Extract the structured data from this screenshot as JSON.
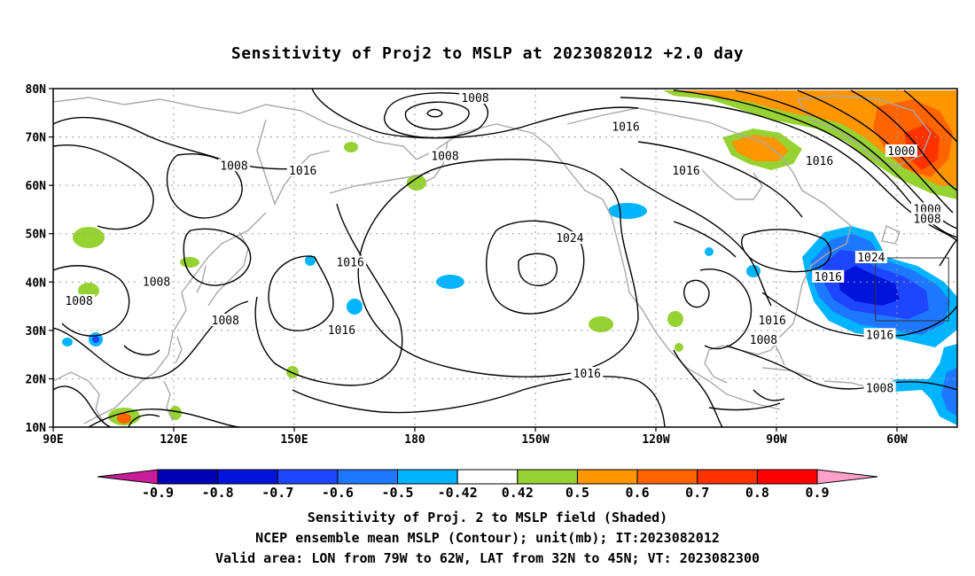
{
  "title": "Sensitivity of Proj2 to MSLP at 2023082012 +2.0 day",
  "lat_labels": [
    "80N",
    "70N",
    "60N",
    "50N",
    "40N",
    "30N",
    "20N",
    "10N"
  ],
  "lon_labels": [
    "90E",
    "120E",
    "150E",
    "180",
    "150W",
    "120W",
    "90W",
    "60W"
  ],
  "contour_labels": [
    {
      "text": "1008",
      "lon": -172,
      "lat": 78
    },
    {
      "text": "1016",
      "lon": -137,
      "lat": 72
    },
    {
      "text": "1000",
      "lon": -73,
      "lat": 67
    },
    {
      "text": "1008",
      "lon": 132,
      "lat": 64
    },
    {
      "text": "1016",
      "lon": 148,
      "lat": 63
    },
    {
      "text": "1008",
      "lon": -179,
      "lat": 66
    },
    {
      "text": "1016",
      "lon": -92,
      "lat": 65
    },
    {
      "text": "1016",
      "lon": -123,
      "lat": 63
    },
    {
      "text": "1000",
      "lon": -67,
      "lat": 55
    },
    {
      "text": "1008",
      "lon": -67,
      "lat": 53
    },
    {
      "text": "1024",
      "lon": -150,
      "lat": 49
    },
    {
      "text": "1024",
      "lon": -80,
      "lat": 45
    },
    {
      "text": "1016",
      "lon": 159,
      "lat": 44
    },
    {
      "text": "1008",
      "lon": 114,
      "lat": 40
    },
    {
      "text": "1016",
      "lon": -90,
      "lat": 41
    },
    {
      "text": "1008",
      "lon": 96,
      "lat": 36
    },
    {
      "text": "1008",
      "lon": 130,
      "lat": 32
    },
    {
      "text": "1016",
      "lon": -103,
      "lat": 32
    },
    {
      "text": "1016",
      "lon": 157,
      "lat": 30
    },
    {
      "text": "1008",
      "lon": -105,
      "lat": 28
    },
    {
      "text": "1016",
      "lon": -78,
      "lat": 29
    },
    {
      "text": "1016",
      "lon": -146,
      "lat": 21
    },
    {
      "text": "1008",
      "lon": -78,
      "lat": 18
    }
  ],
  "colorbar": {
    "labels": [
      "-0.9",
      "-0.8",
      "-0.7",
      "-0.6",
      "-0.5",
      "-0.42",
      "0.42",
      "0.5",
      "0.6",
      "0.7",
      "0.8",
      "0.9"
    ],
    "colors": [
      "#c81c98",
      "#0000b4",
      "#0014dc",
      "#1e46ff",
      "#1e78ff",
      "#00b4ff",
      "#ffffff",
      "#96d232",
      "#ff9600",
      "#ff6400",
      "#ff3200",
      "#ff0000",
      "#ffa0c8"
    ]
  },
  "valid_box": {
    "lon_min": -79,
    "lon_max": -62,
    "lat_min": 32,
    "lat_max": 45
  },
  "captions": {
    "line1": "Sensitivity of Proj. 2 to MSLP field (Shaded)",
    "line2": "NCEP ensemble mean MSLP (Contour); unit(mb); IT:2023082012",
    "line3": "Valid area: LON from 79W to 62W, LAT from 32N to 45N; VT: 2023082300"
  }
}
